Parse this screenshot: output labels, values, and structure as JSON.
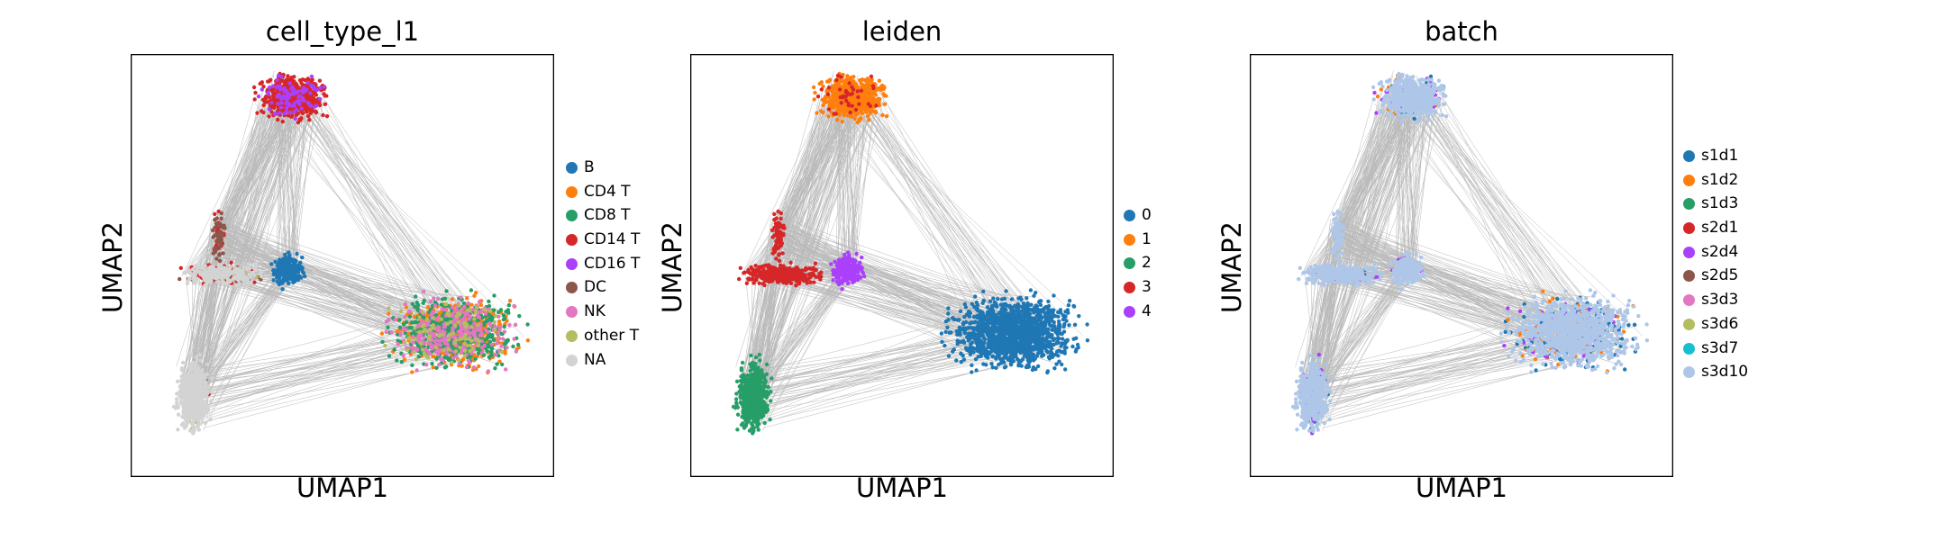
{
  "figure": {
    "background": "#ffffff",
    "edge_color": "#808080",
    "frame_color": "#000000"
  },
  "chart_data": [
    {
      "type": "scatter",
      "title": "cell_type_l1",
      "xlabel": "UMAP1",
      "ylabel": "UMAP2",
      "xticks": [],
      "yticks": [],
      "legend_position": "right",
      "legend": [
        {
          "label": "B",
          "color": "#1f77b4"
        },
        {
          "label": "CD4 T",
          "color": "#ff7f0e"
        },
        {
          "label": "CD8 T",
          "color": "#279e68"
        },
        {
          "label": "CD14 T",
          "color": "#d62728"
        },
        {
          "label": "CD16 T",
          "color": "#aa40fc"
        },
        {
          "label": "DC",
          "color": "#8c564b"
        },
        {
          "label": "NK",
          "color": "#e377c2"
        },
        {
          "label": "other T",
          "color": "#b5bd61"
        },
        {
          "label": "NA",
          "color": "#d3d3d3"
        }
      ]
    },
    {
      "type": "scatter",
      "title": "leiden",
      "xlabel": "UMAP1",
      "ylabel": "UMAP2",
      "xticks": [],
      "yticks": [],
      "legend_position": "right",
      "legend": [
        {
          "label": "0",
          "color": "#1f77b4"
        },
        {
          "label": "1",
          "color": "#ff7f0e"
        },
        {
          "label": "2",
          "color": "#279e68"
        },
        {
          "label": "3",
          "color": "#d62728"
        },
        {
          "label": "4",
          "color": "#aa40fc"
        }
      ]
    },
    {
      "type": "scatter",
      "title": "batch",
      "xlabel": "UMAP1",
      "ylabel": "UMAP2",
      "xticks": [],
      "yticks": [],
      "legend_position": "right",
      "legend": [
        {
          "label": "s1d1",
          "color": "#1f77b4"
        },
        {
          "label": "s1d2",
          "color": "#ff7f0e"
        },
        {
          "label": "s1d3",
          "color": "#279e68"
        },
        {
          "label": "s2d1",
          "color": "#d62728"
        },
        {
          "label": "s2d4",
          "color": "#aa40fc"
        },
        {
          "label": "s2d5",
          "color": "#8c564b"
        },
        {
          "label": "s3d3",
          "color": "#e377c2"
        },
        {
          "label": "s3d6",
          "color": "#b5bd61"
        },
        {
          "label": "s3d7",
          "color": "#17becf"
        },
        {
          "label": "s3d10",
          "color": "#aec7e8"
        }
      ]
    }
  ]
}
